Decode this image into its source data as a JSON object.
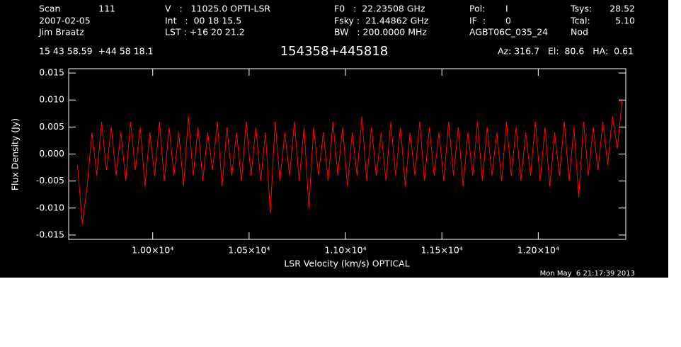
{
  "header": {
    "scan_label": "Scan",
    "scan": "111",
    "date": "2007-02-05",
    "observer": "Jim Braatz",
    "v": "V   :   11025.0 OPTI-LSR",
    "int": "Int   :  00 18 15.5",
    "lst": "LST : +16 20 21.2",
    "f0": "F0   :  22.23508 GHz",
    "fsky": "Fsky :  21.44862 GHz",
    "bw": "BW   : 200.0000 MHz",
    "pol_label": "Pol:",
    "pol": "I",
    "if_label": "IF  :",
    "if": "0",
    "project": "AGBT06C_035_24",
    "tsys_label": "Tsys:",
    "tsys": "28.52",
    "tcal_label": "Tcal:",
    "tcal": "5.10",
    "mode": "Nod",
    "coords": "15 43 58.59  +44 58 18.1",
    "pointing": "Az: 316.7   El:  80.6   HA:  0.61",
    "timestamp": "Mon May  6 21:17:39 2013"
  },
  "chart_data": {
    "type": "line",
    "title": "154358+445818",
    "x_label": "LSR Velocity (km/s) OPTICAL",
    "y_label": "Flux Density (Jy)",
    "xlim": [
      9564,
      12454
    ],
    "ylim": [
      -0.0158,
      0.0158
    ],
    "xticks": [
      {
        "value": 10000,
        "label": "1.00×10⁴"
      },
      {
        "value": 10500,
        "label": "1.05×10⁴"
      },
      {
        "value": 11000,
        "label": "1.10×10⁴"
      },
      {
        "value": 11500,
        "label": "1.15×10⁴"
      },
      {
        "value": 12000,
        "label": "1.20×10⁴"
      }
    ],
    "yticks": [
      0.015,
      {
        "value": 0.01,
        "label": "0.010"
      },
      0.005,
      {
        "value": 0,
        "label": "0.000"
      },
      -0.005,
      {
        "value": -0.01,
        "label": "-0.010"
      },
      -0.015
    ],
    "x": [
      9610,
      9635,
      9660,
      9685,
      9710,
      9735,
      9760,
      9785,
      9810,
      9835,
      9860,
      9885,
      9910,
      9935,
      9960,
      9985,
      10010,
      10035,
      10060,
      10085,
      10110,
      10135,
      10160,
      10185,
      10210,
      10235,
      10260,
      10285,
      10310,
      10335,
      10360,
      10385,
      10410,
      10435,
      10460,
      10485,
      10510,
      10535,
      10560,
      10585,
      10610,
      10635,
      10660,
      10685,
      10710,
      10735,
      10760,
      10785,
      10810,
      10835,
      10860,
      10885,
      10910,
      10935,
      10960,
      10985,
      11010,
      11035,
      11060,
      11085,
      11110,
      11135,
      11160,
      11185,
      11210,
      11235,
      11260,
      11285,
      11310,
      11335,
      11360,
      11385,
      11410,
      11435,
      11460,
      11485,
      11510,
      11535,
      11560,
      11585,
      11610,
      11635,
      11660,
      11685,
      11710,
      11735,
      11760,
      11785,
      11810,
      11835,
      11860,
      11885,
      11910,
      11935,
      11960,
      11985,
      12010,
      12035,
      12060,
      12085,
      12110,
      12135,
      12160,
      12185,
      12210,
      12235,
      12260,
      12285,
      12310,
      12335,
      12360,
      12385,
      12410,
      12435
    ],
    "series": [
      {
        "color": "#ff0000",
        "values": [
          -0.002,
          -0.013,
          -0.006,
          0.004,
          -0.004,
          0.006,
          -0.003,
          0.005,
          -0.004,
          0.004,
          -0.005,
          0.006,
          -0.003,
          0.005,
          -0.006,
          0.004,
          -0.004,
          0.006,
          -0.005,
          0.005,
          -0.004,
          0.004,
          -0.006,
          0.007,
          -0.004,
          0.005,
          -0.005,
          0.004,
          -0.003,
          0.006,
          -0.006,
          0.005,
          -0.004,
          0.004,
          -0.005,
          0.006,
          -0.004,
          0.005,
          -0.005,
          0.004,
          -0.011,
          0.006,
          -0.005,
          0.004,
          -0.004,
          0.006,
          -0.005,
          0.005,
          -0.01,
          0.005,
          -0.004,
          0.004,
          -0.005,
          0.006,
          -0.004,
          0.005,
          -0.006,
          0.004,
          -0.004,
          0.007,
          -0.005,
          0.005,
          -0.004,
          0.004,
          -0.005,
          0.006,
          -0.004,
          0.005,
          -0.006,
          0.004,
          -0.004,
          0.006,
          -0.005,
          0.005,
          -0.004,
          0.004,
          -0.005,
          0.006,
          -0.004,
          0.005,
          -0.006,
          0.004,
          -0.004,
          0.006,
          -0.005,
          0.005,
          -0.004,
          0.004,
          -0.005,
          0.006,
          -0.004,
          0.005,
          -0.005,
          0.004,
          -0.004,
          0.006,
          -0.005,
          0.005,
          -0.006,
          0.004,
          -0.004,
          0.006,
          -0.005,
          0.005,
          -0.008,
          0.006,
          -0.004,
          0.005,
          -0.003,
          0.006,
          -0.002,
          0.007,
          0.001,
          0.01
        ]
      }
    ]
  }
}
